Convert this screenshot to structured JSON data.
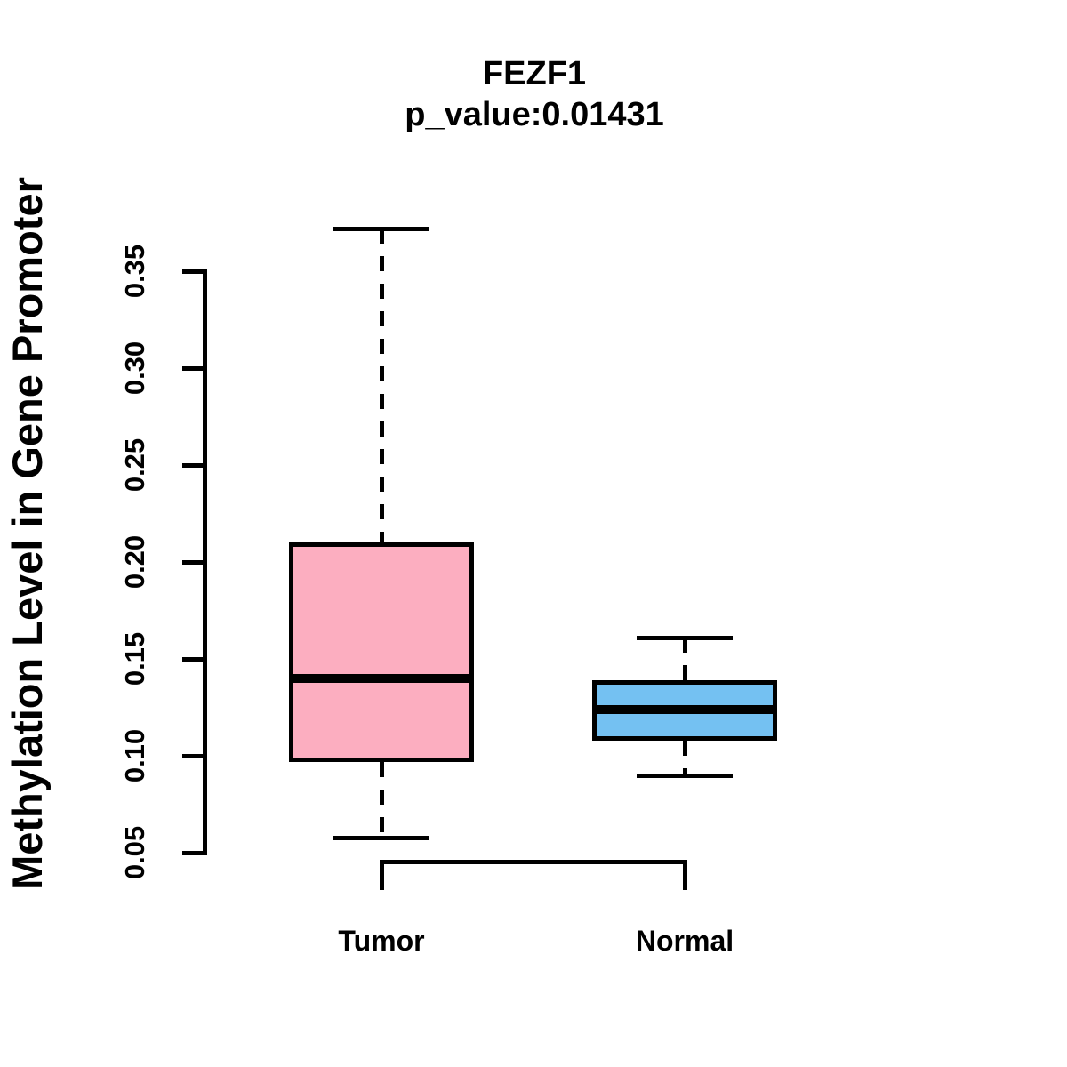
{
  "title": {
    "line1": "FEZF1",
    "line2": "p_value:0.01431"
  },
  "y_axis": {
    "label": "Methylation Level in Gene Promoter",
    "tick_labels": [
      "0.05",
      "0.10",
      "0.15",
      "0.20",
      "0.25",
      "0.30",
      "0.35"
    ]
  },
  "x_axis": {
    "categories": [
      "Tumor",
      "Normal"
    ]
  },
  "colors": {
    "tumor_fill": "#FCAEC0",
    "normal_fill": "#74C1F2",
    "stroke": "#000000",
    "background": "#FFFFFF"
  },
  "chart_data": {
    "type": "boxplot",
    "title": "FEZF1",
    "subtitle": "p_value:0.01431",
    "p_value": 0.01431,
    "ylabel": "Methylation Level in Gene Promoter",
    "xlabel": "",
    "categories": [
      "Tumor",
      "Normal"
    ],
    "ylim": [
      0.05,
      0.35
    ],
    "yticks": [
      0.05,
      0.1,
      0.15,
      0.2,
      0.25,
      0.3,
      0.35
    ],
    "grid": false,
    "legend": "none",
    "series": [
      {
        "name": "Tumor",
        "fill": "#FCAEC0",
        "whisker_low": 0.058,
        "q1": 0.097,
        "median": 0.14,
        "q3": 0.21,
        "whisker_high": 0.372
      },
      {
        "name": "Normal",
        "fill": "#74C1F2",
        "whisker_low": 0.09,
        "q1": 0.108,
        "median": 0.124,
        "q3": 0.139,
        "whisker_high": 0.161
      }
    ]
  }
}
